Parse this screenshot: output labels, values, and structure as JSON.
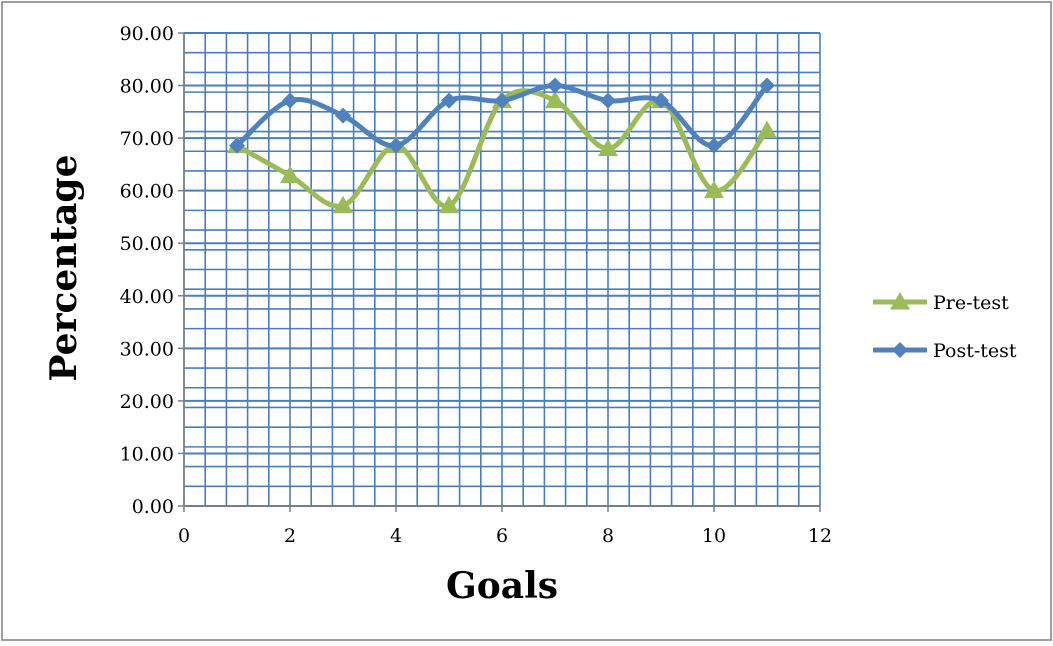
{
  "chart_data": {
    "type": "line",
    "title": "",
    "xlabel": "Goals",
    "ylabel": "Percentage",
    "xlim": [
      0,
      12
    ],
    "ylim": [
      0,
      90
    ],
    "xticks": [
      0,
      2,
      4,
      6,
      8,
      10,
      12
    ],
    "yticks": [
      0,
      10,
      20,
      30,
      40,
      50,
      60,
      70,
      80,
      90
    ],
    "xtick_labels": [
      "0",
      "2",
      "4",
      "6",
      "8",
      "10",
      "12"
    ],
    "ytick_labels": [
      "0.00",
      "10.00",
      "20.00",
      "30.00",
      "40.00",
      "50.00",
      "60.00",
      "70.00",
      "80.00",
      "90.00"
    ],
    "grid": true,
    "smooth": true,
    "legend_position": "right",
    "colors": {
      "plot_background": "#ffffff",
      "gridline": "#4a7ebb",
      "frame": "#7f7f7f"
    },
    "series": [
      {
        "name": "Pre-test",
        "color": "#9bbb59",
        "marker": "triangle",
        "x": [
          1,
          2,
          3,
          4,
          5,
          6,
          7,
          8,
          9,
          10,
          11
        ],
        "y": [
          68.57,
          62.86,
          57.14,
          68.57,
          57.14,
          77.14,
          77.14,
          68.0,
          77.14,
          60.0,
          71.43
        ]
      },
      {
        "name": "Post-test",
        "color": "#4f81bd",
        "marker": "diamond",
        "x": [
          1,
          2,
          3,
          4,
          5,
          6,
          7,
          8,
          9,
          10,
          11
        ],
        "y": [
          68.57,
          77.14,
          74.29,
          68.57,
          77.14,
          77.14,
          80.0,
          77.14,
          77.14,
          68.57,
          80.0
        ]
      }
    ]
  }
}
